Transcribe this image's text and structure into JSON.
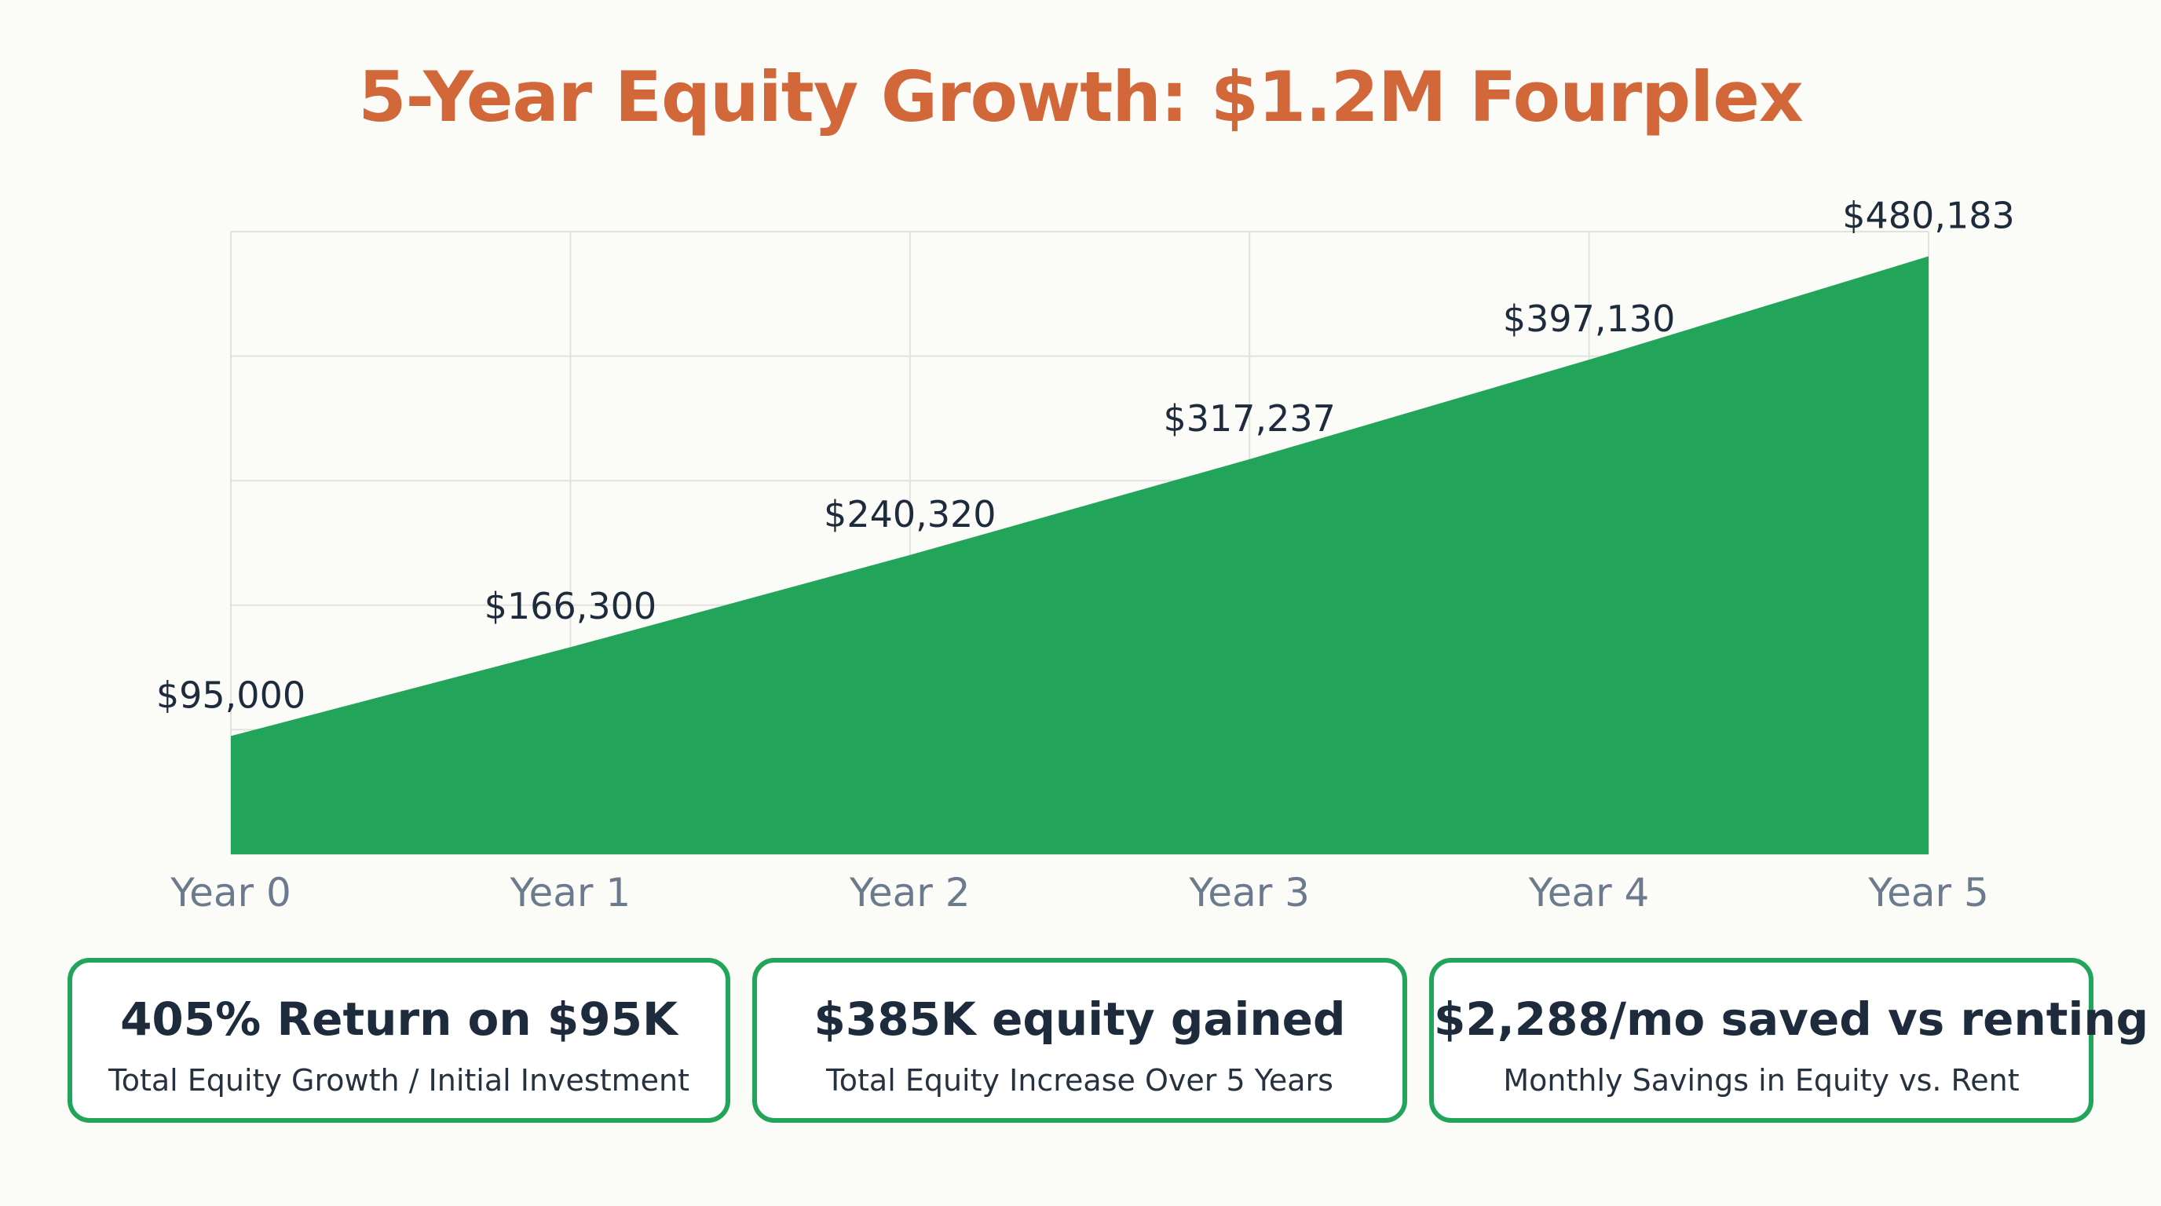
{
  "title": "5-Year Equity Growth: $1.2M Fourplex",
  "colors": {
    "title": "#d2673a",
    "area": "#22a55b",
    "grid": "#e1e1de",
    "value_label": "#1d2b3c",
    "tick_label": "#6b7a8c",
    "card_border": "#22a55b"
  },
  "chart_data": {
    "type": "area",
    "title": "5-Year Equity Growth: $1.2M Fourplex",
    "categories": [
      "Year 0",
      "Year 1",
      "Year 2",
      "Year 3",
      "Year 4",
      "Year 5"
    ],
    "values": [
      95000,
      166300,
      240320,
      317237,
      397130,
      480183
    ],
    "value_labels": [
      "$95,000",
      "$166,300",
      "$240,320",
      "$317,237",
      "$397,130",
      "$480,183"
    ],
    "ylim": [
      0,
      500000
    ],
    "grid": true,
    "legend": "none"
  },
  "cards": [
    {
      "main": "405% Return on $95K",
      "sub": "Total Equity Growth / Initial Investment"
    },
    {
      "main": "$385K equity gained",
      "sub": "Total Equity Increase Over 5 Years"
    },
    {
      "main": "$2,288/mo saved vs renting",
      "sub": "Monthly Savings in Equity vs. Rent"
    }
  ]
}
